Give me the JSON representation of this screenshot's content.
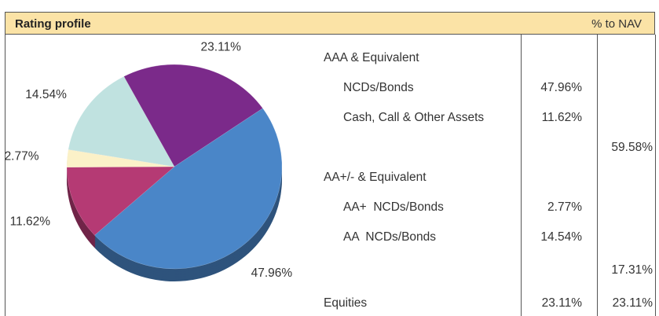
{
  "header": {
    "title": "Rating profile",
    "unit": "% to NAV"
  },
  "chart_data": {
    "type": "pie",
    "values": [
      23.11,
      47.96,
      11.62,
      2.77,
      14.54
    ],
    "value_labels": [
      "23.11%",
      "47.96%",
      "11.62%",
      "2.77%",
      "14.54%"
    ],
    "colors": [
      "#7b2a8a",
      "#4a86c8",
      "#b53a74",
      "#fbf1c8",
      "#c0e2e0"
    ]
  },
  "table": {
    "groups": [
      {
        "heading": "AAA & Equivalent",
        "items": [
          {
            "label": "NCDs/Bonds",
            "value": "47.96%"
          },
          {
            "label": "Cash, Call & Other Assets",
            "value": "11.62%"
          }
        ],
        "total": "59.58%"
      },
      {
        "heading": "AA+/- & Equivalent",
        "items": [
          {
            "label": "AA+  NCDs/Bonds",
            "value": "2.77%"
          },
          {
            "label": "AA  NCDs/Bonds",
            "value": "14.54%"
          }
        ],
        "total": "17.31%"
      },
      {
        "heading": "Equities",
        "value": "23.11%",
        "total": "23.11%"
      }
    ]
  }
}
